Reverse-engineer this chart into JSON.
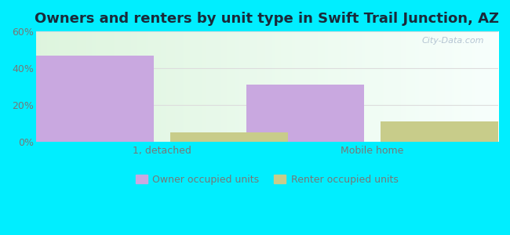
{
  "title": "Owners and renters by unit type in Swift Trail Junction, AZ",
  "categories": [
    "1, detached",
    "Mobile home"
  ],
  "owner_values": [
    47,
    31
  ],
  "renter_values": [
    5,
    11
  ],
  "owner_color": "#c9a8e0",
  "renter_color": "#c8cc8a",
  "owner_label": "Owner occupied units",
  "renter_label": "Renter occupied units",
  "ylim": [
    0,
    60
  ],
  "yticks": [
    0,
    20,
    40,
    60
  ],
  "ytick_labels": [
    "0%",
    "20%",
    "40%",
    "60%"
  ],
  "background_outer": "#00eeff",
  "title_color": "#1a2a3a",
  "title_fontsize": 13,
  "watermark": "City-Data.com",
  "bar_width": 0.28,
  "group_positions": [
    0.25,
    0.75
  ],
  "tick_color": "#777777",
  "grid_color": "#dddddd"
}
